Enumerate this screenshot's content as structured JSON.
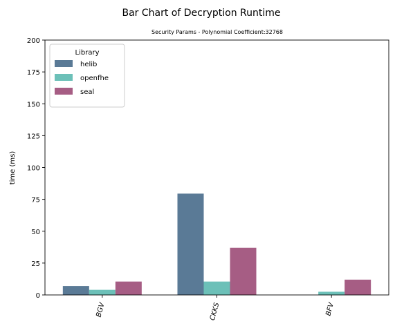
{
  "chart_data": {
    "type": "bar",
    "title": "Bar Chart of Decryption Runtime",
    "subtitle": "Security Params - Polynomial Coefficient:32768",
    "xlabel": "",
    "ylabel": "time (ms)",
    "ylim": [
      0,
      200
    ],
    "yticks": [
      "0",
      "25",
      "50",
      "75",
      "100",
      "125",
      "150",
      "175",
      "200"
    ],
    "categories": [
      "BGV",
      "CKKS",
      "BFV"
    ],
    "series": [
      {
        "name": "helib",
        "color": "#5a7a96",
        "values": [
          7,
          79.5,
          null
        ]
      },
      {
        "name": "openfhe",
        "color": "#6cc0b8",
        "values": [
          4,
          10.5,
          2.5
        ]
      },
      {
        "name": "seal",
        "color": "#a65d84",
        "values": [
          10.5,
          37,
          12
        ]
      }
    ],
    "legend": {
      "title": "Library",
      "position": "top-left"
    },
    "grid": false
  }
}
